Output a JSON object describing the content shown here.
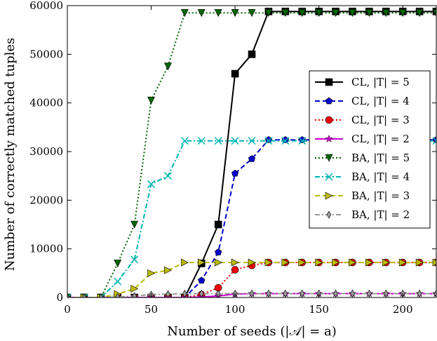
{
  "chart_data": {
    "type": "line",
    "title": "",
    "xlabel": "Number of seeds (|𝒜| = a)",
    "ylabel": "Number of correctly matched tuples",
    "xlim": [
      0,
      220
    ],
    "ylim": [
      0,
      60000
    ],
    "x_ticks": [
      0,
      50,
      100,
      150,
      200
    ],
    "y_ticks": [
      0,
      10000,
      20000,
      30000,
      40000,
      50000,
      60000
    ],
    "grid": false,
    "legend_position": "right",
    "series": [
      {
        "name": "CL, |T| = 5",
        "color": "#000000",
        "marker": "square",
        "dash": "solid",
        "x": [
          0,
          10,
          20,
          30,
          40,
          50,
          60,
          70,
          80,
          90,
          100,
          110,
          120,
          130,
          140,
          150,
          160,
          170,
          180,
          190,
          200,
          210,
          220
        ],
        "y": [
          0,
          0,
          0,
          0,
          0,
          0,
          0,
          0,
          7000,
          15000,
          46000,
          50000,
          58800,
          58800,
          58800,
          58800,
          58800,
          58800,
          58800,
          58800,
          58800,
          58800,
          58800
        ]
      },
      {
        "name": "CL, |T| = 4",
        "color": "#0000cc",
        "marker": "pentagon",
        "dash": "dashed",
        "x": [
          0,
          10,
          20,
          30,
          40,
          50,
          60,
          70,
          80,
          90,
          100,
          110,
          120,
          130,
          140,
          150,
          160,
          170,
          180,
          190,
          200,
          210,
          220
        ],
        "y": [
          0,
          0,
          0,
          0,
          0,
          0,
          0,
          0,
          3500,
          9300,
          25500,
          28500,
          32400,
          32400,
          32400,
          32400,
          32400,
          32400,
          32400,
          32400,
          32400,
          32400,
          32400
        ]
      },
      {
        "name": "CL, |T| = 3",
        "color": "#ee0000",
        "marker": "circle",
        "dash": "dotted",
        "x": [
          0,
          10,
          20,
          30,
          40,
          50,
          60,
          70,
          80,
          90,
          100,
          110,
          120,
          130,
          140,
          150,
          160,
          170,
          180,
          190,
          200,
          210,
          220
        ],
        "y": [
          0,
          0,
          0,
          0,
          0,
          0,
          0,
          0,
          600,
          2000,
          5700,
          6600,
          7200,
          7200,
          7200,
          7200,
          7200,
          7200,
          7200,
          7200,
          7200,
          7200,
          7200
        ]
      },
      {
        "name": "CL, |T| = 2",
        "color": "#cc00cc",
        "marker": "star",
        "dash": "solid",
        "x": [
          0,
          10,
          20,
          30,
          40,
          50,
          60,
          70,
          80,
          90,
          100,
          110,
          120,
          130,
          140,
          150,
          160,
          170,
          180,
          190,
          200,
          210,
          220
        ],
        "y": [
          0,
          0,
          0,
          0,
          0,
          0,
          0,
          0,
          100,
          300,
          700,
          800,
          800,
          800,
          800,
          800,
          800,
          800,
          800,
          800,
          800,
          800,
          800
        ]
      },
      {
        "name": "BA, |T| = 5",
        "color": "#006400",
        "marker": "triangle-down",
        "dash": "dotted",
        "x": [
          0,
          10,
          20,
          30,
          40,
          50,
          60,
          70,
          80,
          90,
          100,
          110,
          120,
          130,
          140,
          150,
          160,
          170,
          180,
          190,
          200,
          210,
          220
        ],
        "y": [
          0,
          0,
          0,
          7000,
          15000,
          40500,
          47500,
          58500,
          58500,
          58500,
          58500,
          58500,
          58500,
          58500,
          58500,
          58500,
          58500,
          58500,
          58500,
          58500,
          58500,
          58500,
          58500
        ]
      },
      {
        "name": "BA, |T| = 4",
        "color": "#00b3b3",
        "marker": "x",
        "dash": "dashdot",
        "x": [
          0,
          10,
          20,
          30,
          40,
          50,
          60,
          70,
          80,
          90,
          100,
          110,
          120,
          130,
          140,
          150,
          160,
          170,
          180,
          190,
          200,
          210,
          220
        ],
        "y": [
          0,
          0,
          0,
          3300,
          7800,
          23300,
          25000,
          32200,
          32200,
          32200,
          32200,
          32200,
          32200,
          32200,
          32200,
          32200,
          32200,
          32200,
          32200,
          32200,
          32200,
          32200,
          32200
        ]
      },
      {
        "name": "BA, |T| = 3",
        "color": "#bbbb00",
        "marker": "triangle-right",
        "dash": "dashed",
        "x": [
          0,
          10,
          20,
          30,
          40,
          50,
          60,
          70,
          80,
          90,
          100,
          110,
          120,
          130,
          140,
          150,
          160,
          170,
          180,
          190,
          200,
          210,
          220
        ],
        "y": [
          0,
          0,
          0,
          700,
          1800,
          5000,
          5600,
          7200,
          7200,
          7200,
          7200,
          7200,
          7200,
          7200,
          7200,
          7200,
          7200,
          7200,
          7200,
          7200,
          7200,
          7200,
          7200
        ]
      },
      {
        "name": "BA, |T| = 2",
        "color": "#999999",
        "marker": "thin-diamond",
        "dash": "dashdot",
        "x": [
          0,
          10,
          20,
          30,
          40,
          50,
          60,
          70,
          80,
          90,
          100,
          110,
          120,
          130,
          140,
          150,
          160,
          170,
          180,
          190,
          200,
          210,
          220
        ],
        "y": [
          0,
          0,
          0,
          100,
          300,
          600,
          700,
          800,
          800,
          800,
          800,
          800,
          800,
          800,
          800,
          800,
          800,
          800,
          800,
          800,
          800,
          800,
          800
        ]
      }
    ]
  }
}
